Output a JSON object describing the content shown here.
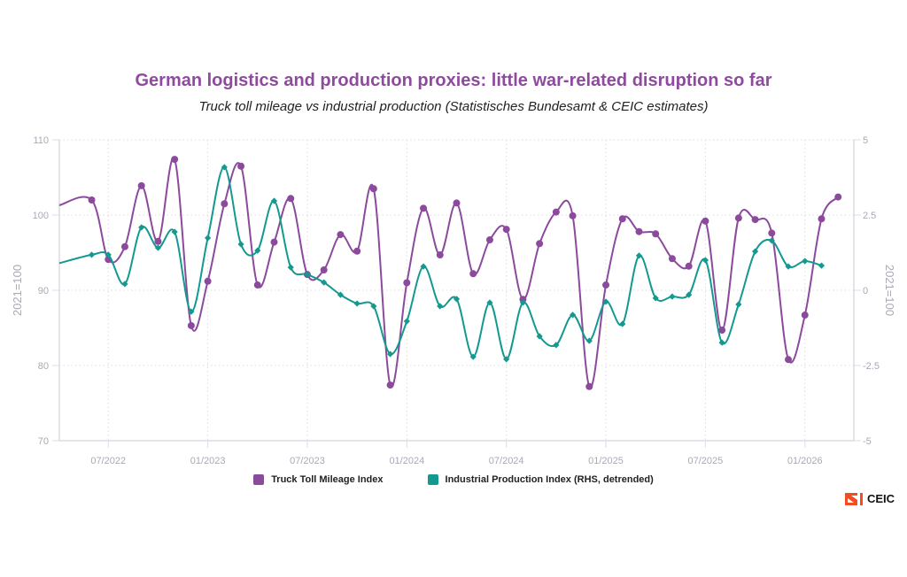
{
  "colors": {
    "truck": "#8b4a9c",
    "production": "#13998f",
    "title": "#8e4b9e",
    "grid": "#dcdce4",
    "axis": "#dcdce4",
    "logo_accent": "#f04e23"
  },
  "brand": {
    "logo_text": "CEIC"
  },
  "chart_data": {
    "type": "line",
    "title": "German logistics and production proxies: little war-related disruption so far",
    "subtitle": "Truck toll mileage vs industrial production (Statistisches Bundesamt & CEIC estimates)",
    "xlabel": "",
    "ylabel": "2021=100",
    "y2label": "2021=100",
    "ylim": [
      70,
      110
    ],
    "y2lim": [
      -5,
      5
    ],
    "yticks": [
      "110",
      "100",
      "90",
      "80",
      "70"
    ],
    "y2ticks": [
      "5",
      "2.5",
      "0",
      "-2.5",
      "-5"
    ],
    "xlim": [
      "2022-04",
      "2026-03"
    ],
    "xticks": [
      "07/2022",
      "01/2023",
      "07/2023",
      "01/2024",
      "07/2024",
      "01/2025",
      "07/2025",
      "01/2026"
    ],
    "grid": true,
    "legend_position": "bottom",
    "x": [
      "2022-06",
      "2022-07",
      "2022-08",
      "2022-09",
      "2022-10",
      "2022-11",
      "2022-12",
      "2023-01",
      "2023-02",
      "2023-03",
      "2023-04",
      "2023-05",
      "2023-06",
      "2023-07",
      "2023-08",
      "2023-09",
      "2023-10",
      "2023-11",
      "2023-12",
      "2024-01",
      "2024-02",
      "2024-03",
      "2024-04",
      "2024-05",
      "2024-06",
      "2024-07",
      "2024-08",
      "2024-09",
      "2024-10",
      "2024-11",
      "2024-12",
      "2025-01",
      "2025-02",
      "2025-03",
      "2025-04",
      "2025-05",
      "2025-06",
      "2025-07",
      "2025-08",
      "2025-09",
      "2025-10",
      "2025-11",
      "2025-12",
      "2026-01",
      "2026-02",
      "2026-03"
    ],
    "series": [
      {
        "name": "Truck Toll Mileage Index",
        "axis": "left",
        "marker": "circle",
        "values": [
          102.0,
          94.1,
          95.8,
          103.9,
          96.5,
          107.4,
          85.3,
          91.2,
          101.5,
          106.5,
          90.7,
          96.4,
          102.2,
          92.1,
          92.7,
          97.4,
          95.2,
          103.5,
          77.4,
          91.0,
          100.9,
          94.7,
          101.6,
          92.2,
          96.7,
          98.1,
          88.8,
          96.2,
          100.4,
          99.9,
          77.2,
          90.7,
          99.5,
          97.8,
          97.5,
          94.2,
          93.2,
          99.2,
          84.7,
          99.6,
          99.4,
          97.6,
          80.8,
          86.7,
          99.5,
          102.4
        ]
      },
      {
        "name": "Industrial Production Index (RHS, detrended)",
        "axis": "right",
        "marker": "diamond",
        "values": [
          1.18,
          1.18,
          0.21,
          2.09,
          1.41,
          1.94,
          -0.71,
          1.74,
          4.09,
          1.53,
          1.32,
          2.97,
          0.76,
          0.53,
          0.26,
          -0.15,
          -0.44,
          -0.53,
          -2.12,
          -1.03,
          0.79,
          -0.53,
          -0.29,
          -2.21,
          -0.41,
          -2.29,
          -0.41,
          -1.53,
          -1.82,
          -0.82,
          -1.68,
          -0.38,
          -1.12,
          1.15,
          -0.26,
          -0.21,
          -0.15,
          1.0,
          -1.74,
          -0.47,
          1.29,
          1.65,
          0.79,
          0.97,
          0.82,
          null
        ]
      }
    ]
  }
}
